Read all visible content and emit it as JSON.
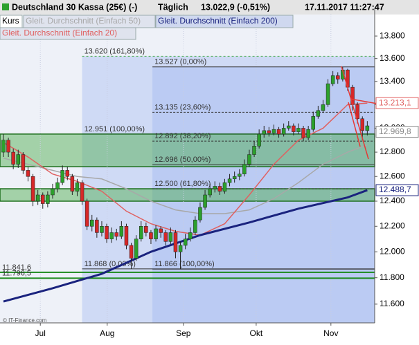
{
  "chart_data": {
    "type": "candlestick",
    "title": "Deutschland 30 Kassa (25€) (-)",
    "interval": "Täglich",
    "quote": "13.022,9 (-0,51%)",
    "timestamp": "17.11.2017 11:27:47",
    "legend": [
      {
        "name": "Kurs",
        "color": "#000000"
      },
      {
        "name": "Gleit. Durchschnitt (Einfach 50)",
        "color": "#a8a8a8"
      },
      {
        "name": "Gleit. Durchschnitt (Einfach 200)",
        "color": "#1a237e"
      },
      {
        "name": "Gleit. Durchschnitt (Einfach 20)",
        "color": "#e06060"
      }
    ],
    "log_scale": true,
    "ylim": [
      11460,
      14050
    ],
    "yticks": [
      {
        "value": 11600,
        "label": "11.600"
      },
      {
        "value": 11800,
        "label": "11.800"
      },
      {
        "value": 12000,
        "label": "12.000"
      },
      {
        "value": 12200,
        "label": "12.200"
      },
      {
        "value": 12400,
        "label": "12.400"
      },
      {
        "value": 12600,
        "label": "12.600"
      },
      {
        "value": 12800,
        "label": "12.800"
      },
      {
        "value": 13000,
        "label": "13.000"
      },
      {
        "value": 13200,
        "label": "13.200"
      },
      {
        "value": 13400,
        "label": "13.400"
      },
      {
        "value": 13600,
        "label": "13.600"
      },
      {
        "value": 13800,
        "label": "13.800"
      }
    ],
    "xlim": [
      -0.7,
      75.5
    ],
    "xticks": [
      {
        "value": 7.5,
        "label": "Jul"
      },
      {
        "value": 21.1,
        "label": "Aug"
      },
      {
        "value": 36.6,
        "label": "Sep"
      },
      {
        "value": 51.4,
        "label": "Okt"
      },
      {
        "value": 66.6,
        "label": "Nov"
      }
    ],
    "up_color": "#2ca02c",
    "down_color": "#d62728",
    "open": [
      12800,
      12900,
      12800,
      12700,
      12780,
      12650,
      12600,
      12400,
      12450,
      12380,
      12450,
      12500,
      12550,
      12650,
      12600,
      12480,
      12550,
      12400,
      12200,
      12250,
      12150,
      12200,
      12100,
      12150,
      12120,
      12200,
      12050,
      11950,
      12100,
      12200,
      12150,
      12100,
      12180,
      12150,
      12080,
      12150,
      12000,
      12050,
      12100,
      12150,
      12250,
      12350,
      12450,
      12500,
      12520,
      12480,
      12550,
      12580,
      12600,
      12620,
      12700,
      12780,
      12850,
      12950,
      12980,
      12960,
      12990,
      12950,
      13000,
      13020,
      12970,
      13000,
      12920,
      12990,
      13100,
      13150,
      13200,
      13380,
      13450,
      13420,
      13500,
      13350,
      13200,
      13080,
      12980
    ],
    "high": [
      12950,
      12920,
      12830,
      12820,
      12800,
      12680,
      12620,
      12490,
      12470,
      12480,
      12540,
      12590,
      12690,
      12680,
      12620,
      12580,
      12570,
      12420,
      12290,
      12270,
      12240,
      12220,
      12190,
      12180,
      12240,
      12220,
      12070,
      12130,
      12240,
      12230,
      12170,
      12210,
      12200,
      12170,
      12190,
      12170,
      12080,
      12140,
      12190,
      12280,
      12390,
      12490,
      12540,
      12560,
      12550,
      12580,
      12620,
      12640,
      12660,
      12740,
      12820,
      12890,
      12990,
      13020,
      13010,
      13030,
      13010,
      13040,
      13060,
      13040,
      13040,
      13020,
      13020,
      13140,
      13190,
      13240,
      13420,
      13490,
      13480,
      13527,
      13510,
      13370,
      13220,
      13100,
      13060
    ],
    "low": [
      12760,
      12760,
      12660,
      12670,
      12620,
      12560,
      12360,
      12370,
      12340,
      12350,
      12420,
      12470,
      12530,
      12570,
      12450,
      12440,
      12370,
      12170,
      12160,
      12110,
      12120,
      12070,
      12070,
      12090,
      12100,
      12020,
      11868,
      11930,
      12080,
      12120,
      12060,
      12080,
      12110,
      12050,
      12060,
      11950,
      11866,
      12020,
      12080,
      12130,
      12230,
      12330,
      12430,
      12470,
      12450,
      12460,
      12520,
      12550,
      12570,
      12600,
      12680,
      12760,
      12830,
      12920,
      12930,
      12940,
      12920,
      12930,
      12980,
      12940,
      12950,
      12890,
      12900,
      12970,
      13080,
      13130,
      13180,
      13360,
      13380,
      13400,
      13320,
      13150,
      13040,
      12900,
      12940
    ],
    "close": [
      12900,
      12800,
      12700,
      12780,
      12650,
      12600,
      12400,
      12450,
      12380,
      12450,
      12500,
      12550,
      12650,
      12600,
      12480,
      12550,
      12400,
      12200,
      12250,
      12150,
      12200,
      12100,
      12150,
      12120,
      12200,
      12050,
      11950,
      12100,
      12200,
      12150,
      12100,
      12180,
      12150,
      12080,
      12150,
      12000,
      12050,
      12100,
      12150,
      12250,
      12350,
      12450,
      12500,
      12520,
      12480,
      12550,
      12580,
      12600,
      12620,
      12700,
      12780,
      12850,
      12950,
      12980,
      12960,
      12990,
      12950,
      13000,
      13020,
      12970,
      13000,
      12920,
      12990,
      13100,
      13150,
      13200,
      13380,
      13450,
      13420,
      13500,
      13350,
      13200,
      13080,
      12980,
      13020
    ],
    "series": [
      {
        "name": "Gleit. Durchschnitt (Einfach 50)",
        "color": "#a8a8a8",
        "x": [
          0,
          5,
          10,
          15,
          20,
          25,
          30,
          35,
          40,
          45,
          50,
          55,
          60,
          65,
          70,
          74
        ],
        "values": [
          12750,
          12700,
          12650,
          12600,
          12580,
          12500,
          12400,
          12330,
          12300,
          12300,
          12330,
          12420,
          12550,
          12700,
          12800,
          12860
        ]
      },
      {
        "name": "Gleit. Durchschnitt (Einfach 20)",
        "color": "#e06060",
        "x": [
          0,
          5,
          10,
          15,
          20,
          25,
          30,
          35,
          40,
          45,
          50,
          55,
          60,
          65,
          70,
          74
        ],
        "values": [
          12880,
          12760,
          12620,
          12560,
          12480,
          12320,
          12220,
          12160,
          12130,
          12220,
          12450,
          12700,
          12900,
          13000,
          13200,
          13213.1
        ]
      },
      {
        "name": "Gleit. Durchschnitt (Einfach 200)",
        "color": "#1a237e",
        "x": [
          0,
          10,
          20,
          30,
          40,
          50,
          60,
          70,
          74
        ],
        "values": [
          11620,
          11720,
          11830,
          12000,
          12130,
          12230,
          12340,
          12430,
          12488.7
        ]
      }
    ],
    "regions": [
      {
        "start": 16,
        "top": 13620
      },
      {
        "start": 30.3,
        "top": 13527
      }
    ],
    "zones": [
      [
        12680,
        12951
      ],
      [
        12400,
        12500
      ]
    ],
    "levels": [
      {
        "label": "13.620 (161,80%)",
        "value": 13620,
        "start": 16,
        "color": "#4caf50"
      },
      {
        "label": "13.527 (0,00%)",
        "value": 13527,
        "start": 30.3,
        "color": "#333333"
      },
      {
        "label": "13.135 (23,60%)",
        "value": 13135,
        "start": 30.3,
        "color": "#333333"
      },
      {
        "label": "12.951 (100,00%)",
        "value": 12951,
        "start": 16,
        "color": "#1b5e20"
      },
      {
        "label": "12.892 (38,20%)",
        "value": 12892,
        "start": 30.3,
        "color": "#333333"
      },
      {
        "label": "12.696 (50,00%)",
        "value": 12696,
        "start": 30.3,
        "color": "#333333"
      },
      {
        "label": "12.500 (61,80%)",
        "value": 12500,
        "start": 30.3,
        "color": "#333333"
      },
      {
        "label": "11.868 (0,00%)",
        "value": 11868,
        "start": 16,
        "color": "#333333"
      },
      {
        "label": "11.866 (100,00%)",
        "value": 11866,
        "start": 30.3,
        "color": "#333333"
      },
      {
        "label": "11.841,6",
        "value": 11841.6,
        "start": -0.7,
        "color": "#1b8a1b"
      },
      {
        "label": "11.796,5",
        "value": 11796.5,
        "start": -0.7,
        "color": "#1b8a1b"
      }
    ],
    "price_labels": [
      {
        "label": "13.213,1",
        "value": 13213.1,
        "color": "#e06060"
      },
      {
        "label": "12.969,8",
        "value": 12969.8,
        "color": "#888888"
      },
      {
        "label": "12.488,7",
        "value": 12488.7,
        "color": "#1a237e"
      }
    ],
    "source": "© IT-Finance.com"
  }
}
